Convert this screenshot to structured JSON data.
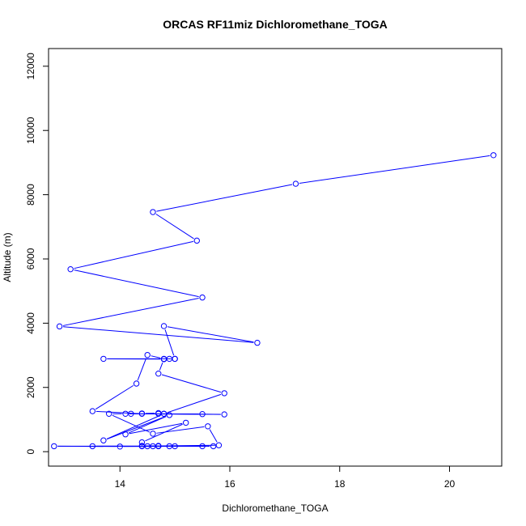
{
  "chart_data": {
    "type": "line",
    "title": "ORCAS RF11miz Dichloromethane_TOGA",
    "xlabel": "Dichloromethane_TOGA",
    "ylabel": "Altitude (m)",
    "xlim": [
      12.7,
      20.95
    ],
    "ylim": [
      -450,
      12550
    ],
    "xticks": [
      14,
      16,
      18,
      20
    ],
    "yticks": [
      0,
      2000,
      4000,
      6000,
      8000,
      10000,
      12000
    ],
    "grid": false,
    "legend": "none",
    "series_color": "#0000ff",
    "series": [
      {
        "points": [
          [
            20.8,
            9230
          ],
          [
            17.2,
            8340
          ],
          [
            14.6,
            7460
          ],
          [
            15.4,
            6570
          ],
          [
            13.1,
            5680
          ],
          [
            15.5,
            4800
          ],
          [
            12.9,
            3900
          ],
          [
            16.5,
            3390
          ],
          [
            14.8,
            3910
          ],
          [
            15.0,
            2890
          ],
          [
            14.9,
            2890
          ],
          [
            14.8,
            2890
          ],
          [
            14.5,
            3010
          ],
          [
            14.3,
            2120
          ],
          [
            13.5,
            1260
          ],
          [
            14.4,
            1180
          ],
          [
            15.5,
            1170
          ],
          [
            14.1,
            1180
          ],
          [
            13.8,
            1180
          ],
          [
            14.6,
            560
          ],
          [
            15.6,
            790
          ],
          [
            15.8,
            200
          ],
          [
            14.7,
            180
          ],
          [
            14.4,
            170
          ],
          [
            13.5,
            170
          ],
          [
            15.7,
            170
          ],
          [
            14.0,
            160
          ],
          [
            12.8,
            170
          ],
          [
            15.5,
            170
          ],
          [
            14.9,
            170
          ],
          [
            14.5,
            170
          ],
          [
            14.7,
            170
          ],
          [
            14.6,
            170
          ],
          [
            15.0,
            170
          ],
          [
            14.4,
            180
          ],
          [
            14.4,
            290
          ],
          [
            15.2,
            900
          ],
          [
            14.1,
            540
          ],
          [
            14.9,
            1140
          ],
          [
            13.7,
            350
          ],
          [
            14.8,
            1180
          ],
          [
            14.7,
            1200
          ],
          [
            14.4,
            1190
          ],
          [
            14.2,
            1180
          ],
          [
            15.9,
            1160
          ],
          [
            14.7,
            1180
          ],
          [
            14.8,
            1180
          ],
          [
            15.9,
            1820
          ],
          [
            14.7,
            2430
          ],
          [
            14.8,
            2880
          ],
          [
            13.7,
            2890
          ],
          [
            15.0,
            2890
          ]
        ]
      }
    ]
  }
}
